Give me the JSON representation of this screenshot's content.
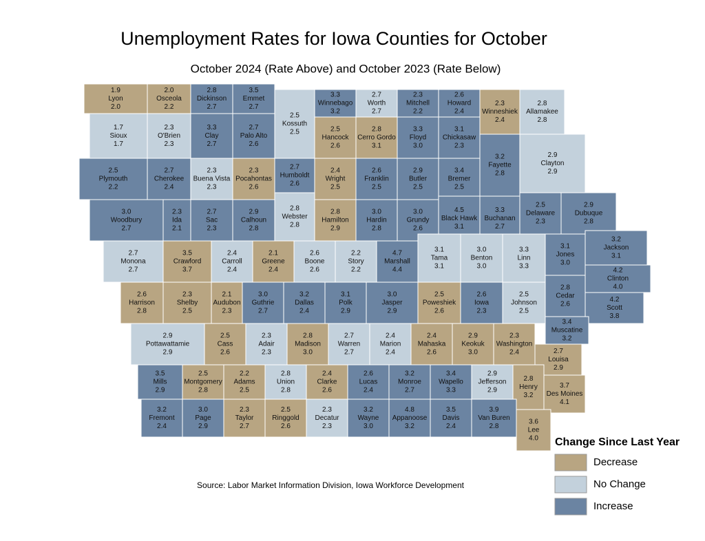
{
  "title": "Unemployment Rates for Iowa Counties for October",
  "subtitle": "October 2024 (Rate Above) and October 2023 (Rate Below)",
  "source": "Source: Labor Market Information Division, Iowa Workforce Development",
  "legend": {
    "title": "Change Since Last Year",
    "items": [
      {
        "name": "Decrease",
        "color": "#b8a582"
      },
      {
        "name": "No Change",
        "color": "#c3d1dc"
      },
      {
        "name": "Increase",
        "color": "#6b84a2"
      }
    ]
  },
  "counties": [
    {
      "name": "Lyon",
      "values": [
        1.9,
        2.0
      ],
      "value_labels": [
        "1.9",
        "2.0"
      ]
    },
    {
      "name": "Osceola",
      "values": [
        2.0,
        2.2
      ],
      "value_labels": [
        "2.0",
        "2.2"
      ]
    },
    {
      "name": "Dickinson",
      "values": [
        2.8,
        2.7
      ],
      "value_labels": [
        "2.8",
        "2.7"
      ]
    },
    {
      "name": "Emmet",
      "values": [
        3.5,
        2.7
      ],
      "value_labels": [
        "3.5",
        "2.7"
      ]
    },
    {
      "name": "Kossuth",
      "values": [
        2.5,
        2.5
      ],
      "value_labels": [
        "2.5",
        "2.5"
      ]
    },
    {
      "name": "Winnebago",
      "values": [
        3.3,
        3.2
      ],
      "value_labels": [
        "3.3",
        "3.2"
      ]
    },
    {
      "name": "Worth",
      "values": [
        2.7,
        2.7
      ],
      "value_labels": [
        "2.7",
        "2.7"
      ]
    },
    {
      "name": "Mitchell",
      "values": [
        2.3,
        2.2
      ],
      "value_labels": [
        "2.3",
        "2.2"
      ]
    },
    {
      "name": "Howard",
      "values": [
        2.6,
        2.4
      ],
      "value_labels": [
        "2.6",
        "2.4"
      ]
    },
    {
      "name": "Winneshiek",
      "values": [
        2.3,
        2.4
      ],
      "value_labels": [
        "2.3",
        "2.4"
      ]
    },
    {
      "name": "Allamakee",
      "values": [
        2.8,
        2.8
      ],
      "value_labels": [
        "2.8",
        "2.8"
      ]
    },
    {
      "name": "Sioux",
      "values": [
        1.7,
        1.7
      ],
      "value_labels": [
        "1.7",
        "1.7"
      ]
    },
    {
      "name": "O'Brien",
      "values": [
        2.3,
        2.3
      ],
      "value_labels": [
        "2.3",
        "2.3"
      ]
    },
    {
      "name": "Clay",
      "values": [
        3.3,
        2.7
      ],
      "value_labels": [
        "3.3",
        "2.7"
      ]
    },
    {
      "name": "Palo Alto",
      "values": [
        2.7,
        2.6
      ],
      "value_labels": [
        "2.7",
        "2.6"
      ]
    },
    {
      "name": "Hancock",
      "values": [
        2.5,
        2.6
      ],
      "value_labels": [
        "2.5",
        "2.6"
      ]
    },
    {
      "name": "Cerro Gordo",
      "values": [
        2.8,
        3.1
      ],
      "value_labels": [
        "2.8",
        "3.1"
      ]
    },
    {
      "name": "Floyd",
      "values": [
        3.3,
        3.0
      ],
      "value_labels": [
        "3.3",
        "3.0"
      ]
    },
    {
      "name": "Chickasaw",
      "values": [
        3.1,
        2.3
      ],
      "value_labels": [
        "3.1",
        "2.3"
      ]
    },
    {
      "name": "Fayette",
      "values": [
        3.2,
        2.8
      ],
      "value_labels": [
        "3.2",
        "2.8"
      ]
    },
    {
      "name": "Clayton",
      "values": [
        2.9,
        2.9
      ],
      "value_labels": [
        "2.9",
        "2.9"
      ]
    },
    {
      "name": "Plymouth",
      "values": [
        2.5,
        2.2
      ],
      "value_labels": [
        "2.5",
        "2.2"
      ]
    },
    {
      "name": "Cherokee",
      "values": [
        2.7,
        2.4
      ],
      "value_labels": [
        "2.7",
        "2.4"
      ]
    },
    {
      "name": "Buena Vista",
      "values": [
        2.3,
        2.3
      ],
      "value_labels": [
        "2.3",
        "2.3"
      ]
    },
    {
      "name": "Pocahontas",
      "values": [
        2.3,
        2.6
      ],
      "value_labels": [
        "2.3",
        "2.6"
      ]
    },
    {
      "name": "Humboldt",
      "values": [
        2.7,
        2.6
      ],
      "value_labels": [
        "2.7",
        "2.6"
      ]
    },
    {
      "name": "Wright",
      "values": [
        2.4,
        2.5
      ],
      "value_labels": [
        "2.4",
        "2.5"
      ]
    },
    {
      "name": "Franklin",
      "values": [
        2.6,
        2.5
      ],
      "value_labels": [
        "2.6",
        "2.5"
      ]
    },
    {
      "name": "Butler",
      "values": [
        2.9,
        2.5
      ],
      "value_labels": [
        "2.9",
        "2.5"
      ]
    },
    {
      "name": "Bremer",
      "values": [
        3.4,
        2.5
      ],
      "value_labels": [
        "3.4",
        "2.5"
      ]
    },
    {
      "name": "Woodbury",
      "values": [
        3.0,
        2.7
      ],
      "value_labels": [
        "3.0",
        "2.7"
      ]
    },
    {
      "name": "Ida",
      "values": [
        2.3,
        2.1
      ],
      "value_labels": [
        "2.3",
        "2.1"
      ]
    },
    {
      "name": "Sac",
      "values": [
        2.7,
        2.3
      ],
      "value_labels": [
        "2.7",
        "2.3"
      ]
    },
    {
      "name": "Calhoun",
      "values": [
        2.9,
        2.8
      ],
      "value_labels": [
        "2.9",
        "2.8"
      ]
    },
    {
      "name": "Webster",
      "values": [
        2.8,
        2.8
      ],
      "value_labels": [
        "2.8",
        "2.8"
      ]
    },
    {
      "name": "Hamilton",
      "values": [
        2.8,
        2.9
      ],
      "value_labels": [
        "2.8",
        "2.9"
      ]
    },
    {
      "name": "Hardin",
      "values": [
        3.0,
        2.8
      ],
      "value_labels": [
        "3.0",
        "2.8"
      ]
    },
    {
      "name": "Grundy",
      "values": [
        3.0,
        2.6
      ],
      "value_labels": [
        "3.0",
        "2.6"
      ]
    },
    {
      "name": "Black Hawk",
      "values": [
        4.5,
        3.1
      ],
      "value_labels": [
        "4.5",
        "3.1"
      ]
    },
    {
      "name": "Buchanan",
      "values": [
        3.3,
        2.7
      ],
      "value_labels": [
        "3.3",
        "2.7"
      ]
    },
    {
      "name": "Delaware",
      "values": [
        2.5,
        2.3
      ],
      "value_labels": [
        "2.5",
        "2.3"
      ]
    },
    {
      "name": "Dubuque",
      "values": [
        2.9,
        2.8
      ],
      "value_labels": [
        "2.9",
        "2.8"
      ]
    },
    {
      "name": "Monona",
      "values": [
        2.7,
        2.7
      ],
      "value_labels": [
        "2.7",
        "2.7"
      ]
    },
    {
      "name": "Crawford",
      "values": [
        3.5,
        3.7
      ],
      "value_labels": [
        "3.5",
        "3.7"
      ]
    },
    {
      "name": "Carroll",
      "values": [
        2.4,
        2.4
      ],
      "value_labels": [
        "2.4",
        "2.4"
      ]
    },
    {
      "name": "Greene",
      "values": [
        2.1,
        2.4
      ],
      "value_labels": [
        "2.1",
        "2.4"
      ]
    },
    {
      "name": "Boone",
      "values": [
        2.6,
        2.6
      ],
      "value_labels": [
        "2.6",
        "2.6"
      ]
    },
    {
      "name": "Story",
      "values": [
        2.2,
        2.2
      ],
      "value_labels": [
        "2.2",
        "2.2"
      ]
    },
    {
      "name": "Marshall",
      "values": [
        4.7,
        4.4
      ],
      "value_labels": [
        "4.7",
        "4.4"
      ]
    },
    {
      "name": "Tama",
      "values": [
        3.1,
        3.1
      ],
      "value_labels": [
        "3.1",
        "3.1"
      ]
    },
    {
      "name": "Benton",
      "values": [
        3.0,
        3.0
      ],
      "value_labels": [
        "3.0",
        "3.0"
      ]
    },
    {
      "name": "Linn",
      "values": [
        3.3,
        3.3
      ],
      "value_labels": [
        "3.3",
        "3.3"
      ]
    },
    {
      "name": "Jones",
      "values": [
        3.1,
        3.0
      ],
      "value_labels": [
        "3.1",
        "3.0"
      ]
    },
    {
      "name": "Jackson",
      "values": [
        3.2,
        3.1
      ],
      "value_labels": [
        "3.2",
        "3.1"
      ]
    },
    {
      "name": "Harrison",
      "values": [
        2.6,
        2.8
      ],
      "value_labels": [
        "2.6",
        "2.8"
      ]
    },
    {
      "name": "Shelby",
      "values": [
        2.3,
        2.5
      ],
      "value_labels": [
        "2.3",
        "2.5"
      ]
    },
    {
      "name": "Audubon",
      "values": [
        2.1,
        2.3
      ],
      "value_labels": [
        "2.1",
        "2.3"
      ]
    },
    {
      "name": "Guthrie",
      "values": [
        3.0,
        2.7
      ],
      "value_labels": [
        "3.0",
        "2.7"
      ]
    },
    {
      "name": "Dallas",
      "values": [
        3.2,
        2.4
      ],
      "value_labels": [
        "3.2",
        "2.4"
      ]
    },
    {
      "name": "Polk",
      "values": [
        3.1,
        2.9
      ],
      "value_labels": [
        "3.1",
        "2.9"
      ]
    },
    {
      "name": "Jasper",
      "values": [
        3.0,
        2.9
      ],
      "value_labels": [
        "3.0",
        "2.9"
      ]
    },
    {
      "name": "Poweshiek",
      "values": [
        2.5,
        2.6
      ],
      "value_labels": [
        "2.5",
        "2.6"
      ]
    },
    {
      "name": "Iowa",
      "values": [
        2.6,
        2.3
      ],
      "value_labels": [
        "2.6",
        "2.3"
      ]
    },
    {
      "name": "Johnson",
      "values": [
        2.5,
        2.5
      ],
      "value_labels": [
        "2.5",
        "2.5"
      ]
    },
    {
      "name": "Cedar",
      "values": [
        2.8,
        2.6
      ],
      "value_labels": [
        "2.8",
        "2.6"
      ]
    },
    {
      "name": "Clinton",
      "values": [
        4.2,
        4.0
      ],
      "value_labels": [
        "4.2",
        "4.0"
      ]
    },
    {
      "name": "Scott",
      "values": [
        4.2,
        3.8
      ],
      "value_labels": [
        "4.2",
        "3.8"
      ]
    },
    {
      "name": "Pottawattamie",
      "values": [
        2.9,
        2.9
      ],
      "value_labels": [
        "2.9",
        "2.9"
      ]
    },
    {
      "name": "Cass",
      "values": [
        2.5,
        2.6
      ],
      "value_labels": [
        "2.5",
        "2.6"
      ]
    },
    {
      "name": "Adair",
      "values": [
        2.3,
        2.3
      ],
      "value_labels": [
        "2.3",
        "2.3"
      ]
    },
    {
      "name": "Madison",
      "values": [
        2.8,
        3.0
      ],
      "value_labels": [
        "2.8",
        "3.0"
      ]
    },
    {
      "name": "Warren",
      "values": [
        2.7,
        2.7
      ],
      "value_labels": [
        "2.7",
        "2.7"
      ]
    },
    {
      "name": "Marion",
      "values": [
        2.4,
        2.4
      ],
      "value_labels": [
        "2.4",
        "2.4"
      ]
    },
    {
      "name": "Mahaska",
      "values": [
        2.4,
        2.6
      ],
      "value_labels": [
        "2.4",
        "2.6"
      ]
    },
    {
      "name": "Keokuk",
      "values": [
        2.9,
        3.0
      ],
      "value_labels": [
        "2.9",
        "3.0"
      ]
    },
    {
      "name": "Washington",
      "values": [
        2.3,
        2.4
      ],
      "value_labels": [
        "2.3",
        "2.4"
      ]
    },
    {
      "name": "Muscatine",
      "values": [
        3.4,
        3.2
      ],
      "value_labels": [
        "3.4",
        "3.2"
      ]
    },
    {
      "name": "Louisa",
      "values": [
        2.7,
        2.9
      ],
      "value_labels": [
        "2.7",
        "2.9"
      ]
    },
    {
      "name": "Mills",
      "values": [
        3.5,
        2.9
      ],
      "value_labels": [
        "3.5",
        "2.9"
      ]
    },
    {
      "name": "Montgomery",
      "values": [
        2.5,
        2.8
      ],
      "value_labels": [
        "2.5",
        "2.8"
      ]
    },
    {
      "name": "Adams",
      "values": [
        2.2,
        2.5
      ],
      "value_labels": [
        "2.2",
        "2.5"
      ]
    },
    {
      "name": "Union",
      "values": [
        2.8,
        2.8
      ],
      "value_labels": [
        "2.8",
        "2.8"
      ]
    },
    {
      "name": "Clarke",
      "values": [
        2.4,
        2.6
      ],
      "value_labels": [
        "2.4",
        "2.6"
      ]
    },
    {
      "name": "Lucas",
      "values": [
        2.6,
        2.4
      ],
      "value_labels": [
        "2.6",
        "2.4"
      ]
    },
    {
      "name": "Monroe",
      "values": [
        3.2,
        2.7
      ],
      "value_labels": [
        "3.2",
        "2.7"
      ]
    },
    {
      "name": "Wapello",
      "values": [
        3.4,
        3.3
      ],
      "value_labels": [
        "3.4",
        "3.3"
      ]
    },
    {
      "name": "Jefferson",
      "values": [
        2.9,
        2.9
      ],
      "value_labels": [
        "2.9",
        "2.9"
      ]
    },
    {
      "name": "Henry",
      "values": [
        2.8,
        3.2
      ],
      "value_labels": [
        "2.8",
        "3.2"
      ]
    },
    {
      "name": "Des Moines",
      "values": [
        3.7,
        4.1
      ],
      "value_labels": [
        "3.7",
        "4.1"
      ]
    },
    {
      "name": "Fremont",
      "values": [
        3.2,
        2.4
      ],
      "value_labels": [
        "3.2",
        "2.4"
      ]
    },
    {
      "name": "Page",
      "values": [
        3.0,
        2.9
      ],
      "value_labels": [
        "3.0",
        "2.9"
      ]
    },
    {
      "name": "Taylor",
      "values": [
        2.3,
        2.7
      ],
      "value_labels": [
        "2.3",
        "2.7"
      ]
    },
    {
      "name": "Ringgold",
      "values": [
        2.5,
        2.6
      ],
      "value_labels": [
        "2.5",
        "2.6"
      ]
    },
    {
      "name": "Decatur",
      "values": [
        2.3,
        2.3
      ],
      "value_labels": [
        "2.3",
        "2.3"
      ]
    },
    {
      "name": "Wayne",
      "values": [
        3.2,
        3.0
      ],
      "value_labels": [
        "3.2",
        "3.0"
      ]
    },
    {
      "name": "Appanoose",
      "values": [
        4.8,
        3.2
      ],
      "value_labels": [
        "4.8",
        "3.2"
      ]
    },
    {
      "name": "Davis",
      "values": [
        3.5,
        2.4
      ],
      "value_labels": [
        "3.5",
        "2.4"
      ]
    },
    {
      "name": "Van Buren",
      "values": [
        3.9,
        2.8
      ],
      "value_labels": [
        "3.9",
        "2.8"
      ]
    },
    {
      "name": "Lee",
      "values": [
        3.6,
        4.0
      ],
      "value_labels": [
        "3.6",
        "4.0"
      ]
    }
  ]
}
